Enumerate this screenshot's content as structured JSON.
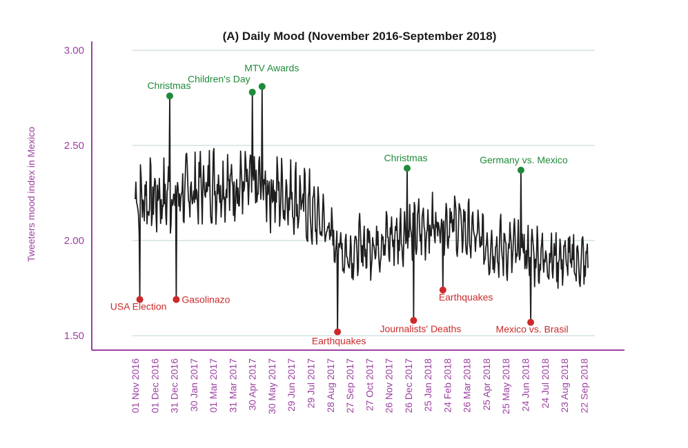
{
  "colors": {
    "axis": "#9b3fa0",
    "line": "#1e1e1e",
    "grid": "#dfe8ea",
    "positive": "#1f8a3a",
    "negative": "#cc2a2a"
  },
  "chart_data": {
    "type": "line",
    "title": "(A) Daily Mood (November 2016-September 2018)",
    "xlabel": "",
    "ylabel": "Tweeters mood index in Mexico",
    "ylim": [
      1.45,
      3.05
    ],
    "yticks": [
      "3.00",
      "2.50",
      "2.00",
      "1.50"
    ],
    "grid": true,
    "x_date_range": [
      "2016-11-01",
      "2018-09-28"
    ],
    "xticks": [
      {
        "date": "2016-11-01",
        "label": "01 Nov 2016"
      },
      {
        "date": "2016-12-01",
        "label": "01 Dec 2016"
      },
      {
        "date": "2016-12-31",
        "label": "31 Dec 2016"
      },
      {
        "date": "2017-01-30",
        "label": "30 Jan 2017"
      },
      {
        "date": "2017-03-01",
        "label": "01 Mar 2017"
      },
      {
        "date": "2017-03-31",
        "label": "31 Mar 2017"
      },
      {
        "date": "2017-04-30",
        "label": "30 Apr 2017"
      },
      {
        "date": "2017-05-30",
        "label": "30 May 2017"
      },
      {
        "date": "2017-06-29",
        "label": "29 Jun 2017"
      },
      {
        "date": "2017-07-29",
        "label": "29 Jul 2017"
      },
      {
        "date": "2017-08-28",
        "label": "28 Aug 2017"
      },
      {
        "date": "2017-09-27",
        "label": "27 Sep 2017"
      },
      {
        "date": "2017-10-27",
        "label": "27 Oct 2017"
      },
      {
        "date": "2017-11-26",
        "label": "26 Nov 2017"
      },
      {
        "date": "2017-12-26",
        "label": "26 Dec 2017"
      },
      {
        "date": "2018-01-25",
        "label": "25 Jan 2018"
      },
      {
        "date": "2018-02-24",
        "label": "24 Feb 2018"
      },
      {
        "date": "2018-03-26",
        "label": "26 Mar 2018"
      },
      {
        "date": "2018-04-25",
        "label": "25 Apr 2018"
      },
      {
        "date": "2018-05-25",
        "label": "25 May 2018"
      },
      {
        "date": "2018-06-24",
        "label": "24 Jun 2018"
      },
      {
        "date": "2018-07-24",
        "label": "24 Jul 2018"
      },
      {
        "date": "2018-08-23",
        "label": "23 Aug 2018"
      },
      {
        "date": "2018-09-22",
        "label": "22 Sep 2018"
      }
    ],
    "trend": [
      {
        "date": "2016-11-01",
        "y": 2.22
      },
      {
        "date": "2017-01-01",
        "y": 2.23
      },
      {
        "date": "2017-03-01",
        "y": 2.3
      },
      {
        "date": "2017-05-01",
        "y": 2.28
      },
      {
        "date": "2017-07-01",
        "y": 2.24
      },
      {
        "date": "2017-08-15",
        "y": 2.1
      },
      {
        "date": "2017-09-20",
        "y": 1.93
      },
      {
        "date": "2017-11-01",
        "y": 1.98
      },
      {
        "date": "2018-01-01",
        "y": 2.05
      },
      {
        "date": "2018-03-01",
        "y": 2.1
      },
      {
        "date": "2018-05-01",
        "y": 1.97
      },
      {
        "date": "2018-07-01",
        "y": 1.93
      },
      {
        "date": "2018-09-28",
        "y": 1.88
      }
    ],
    "annotations": [
      {
        "label": "Christmas",
        "date": "2016-12-24",
        "y": 2.76,
        "kind": "positive"
      },
      {
        "label": "Children's Day",
        "date": "2017-04-30",
        "y": 2.78,
        "kind": "positive"
      },
      {
        "label": "MTV Awards",
        "date": "2017-05-15",
        "y": 2.81,
        "kind": "positive"
      },
      {
        "label": "Christmas",
        "date": "2017-12-24",
        "y": 2.38,
        "kind": "positive"
      },
      {
        "label": "Germany vs. Mexico",
        "date": "2018-06-17",
        "y": 2.37,
        "kind": "positive"
      },
      {
        "label": "USA Election",
        "date": "2016-11-08",
        "y": 1.69,
        "kind": "negative"
      },
      {
        "label": "Gasolinazo",
        "date": "2017-01-03",
        "y": 1.69,
        "kind": "negative"
      },
      {
        "label": "Earthquakes",
        "date": "2017-09-08",
        "y": 1.52,
        "kind": "negative"
      },
      {
        "label": "Journalists' Deaths",
        "date": "2018-01-03",
        "y": 1.58,
        "kind": "negative"
      },
      {
        "label": "Earthquakes",
        "date": "2018-02-17",
        "y": 1.74,
        "kind": "negative"
      },
      {
        "label": "Mexico vs. Brasil",
        "date": "2018-07-02",
        "y": 1.57,
        "kind": "negative"
      }
    ]
  }
}
